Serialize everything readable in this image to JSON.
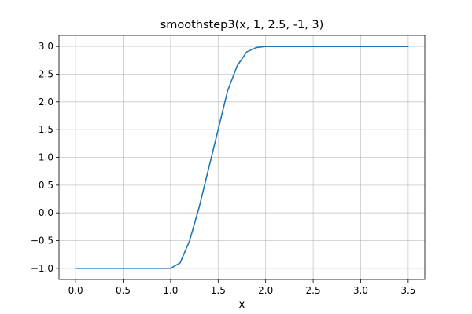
{
  "chart_data": {
    "type": "line",
    "title": "smoothstep3(x, 1, 2.5, -1, 3)",
    "xlabel": "x",
    "ylabel": "",
    "xlim": [
      -0.175,
      3.675
    ],
    "ylim": [
      -1.2,
      3.2
    ],
    "grid": true,
    "xticks": [
      0.0,
      0.5,
      1.0,
      1.5,
      2.0,
      2.5,
      3.0,
      3.5
    ],
    "xtick_labels": [
      "0.0",
      "0.5",
      "1.0",
      "1.5",
      "2.0",
      "2.5",
      "3.0",
      "3.5"
    ],
    "yticks": [
      -1.0,
      -0.5,
      0.0,
      0.5,
      1.0,
      1.5,
      2.0,
      2.5,
      3.0
    ],
    "ytick_labels": [
      "−1.0",
      "−0.5",
      "0.0",
      "0.5",
      "1.0",
      "1.5",
      "2.0",
      "2.5",
      "3.0"
    ],
    "series": [
      {
        "name": "smoothstep3",
        "color": "#1f77b4",
        "x": [
          0.0,
          0.25,
          0.5,
          0.75,
          1.0,
          1.1,
          1.2,
          1.3,
          1.4,
          1.5,
          1.6,
          1.7,
          1.8,
          1.9,
          2.0,
          2.1,
          2.2,
          2.3,
          2.4,
          2.5,
          2.75,
          3.0,
          3.25,
          3.5
        ],
        "y": [
          -1.0,
          -1.0,
          -1.0,
          -1.0,
          -1.0,
          -0.9,
          -0.5,
          0.1,
          0.8,
          1.5,
          2.2,
          2.65,
          2.9,
          2.98,
          3.0,
          3.0,
          3.0,
          3.0,
          3.0,
          3.0,
          3.0,
          3.0,
          3.0,
          3.0
        ]
      }
    ]
  },
  "colors": {
    "line": "#1f77b4",
    "grid": "#b0b0b0",
    "axis": "#000000"
  }
}
